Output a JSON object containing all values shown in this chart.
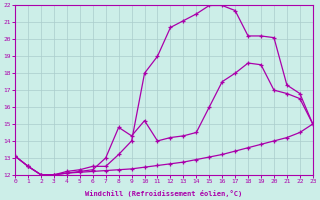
{
  "xlabel": "Windchill (Refroidissement éolien,°C)",
  "bg_color": "#cceee8",
  "line_color": "#aa00aa",
  "grid_color": "#aacccc",
  "xlim": [
    0,
    23
  ],
  "ylim": [
    12,
    22
  ],
  "yticks": [
    12,
    13,
    14,
    15,
    16,
    17,
    18,
    19,
    20,
    21,
    22
  ],
  "xticks": [
    0,
    1,
    2,
    3,
    4,
    5,
    6,
    7,
    8,
    9,
    10,
    11,
    12,
    13,
    14,
    15,
    16,
    17,
    18,
    19,
    20,
    21,
    22,
    23
  ],
  "line1_x": [
    0,
    1,
    2,
    3,
    4,
    5,
    6,
    7,
    8,
    9,
    10,
    11,
    12,
    13,
    14,
    15,
    16,
    17,
    18,
    19,
    20,
    21,
    22,
    23
  ],
  "line1_y": [
    13.1,
    12.5,
    12.0,
    12.0,
    12.1,
    12.15,
    12.2,
    12.25,
    12.3,
    12.35,
    12.45,
    12.55,
    12.65,
    12.75,
    12.9,
    13.05,
    13.2,
    13.4,
    13.6,
    13.8,
    14.0,
    14.2,
    14.5,
    15.0
  ],
  "line2_x": [
    0,
    1,
    2,
    3,
    4,
    5,
    6,
    7,
    8,
    9,
    10,
    11,
    12,
    13,
    14,
    15,
    16,
    17,
    18,
    19,
    20,
    21,
    22,
    23
  ],
  "line2_y": [
    13.1,
    12.5,
    12.0,
    12.0,
    12.1,
    12.2,
    12.3,
    13.0,
    14.8,
    14.3,
    15.2,
    14.0,
    14.2,
    14.3,
    14.5,
    16.0,
    17.5,
    18.0,
    18.6,
    18.5,
    17.0,
    16.8,
    16.5,
    15.0
  ],
  "line3_x": [
    0,
    1,
    2,
    3,
    4,
    5,
    6,
    7,
    8,
    9,
    10,
    11,
    12,
    13,
    14,
    15,
    16,
    17,
    18,
    19,
    20,
    21,
    22,
    23
  ],
  "line3_y": [
    13.1,
    12.5,
    12.0,
    12.0,
    12.2,
    12.3,
    12.5,
    12.5,
    13.2,
    14.0,
    18.0,
    19.0,
    20.7,
    21.1,
    21.5,
    22.0,
    22.0,
    21.7,
    20.2,
    20.2,
    20.1,
    17.3,
    16.8,
    15.0
  ]
}
